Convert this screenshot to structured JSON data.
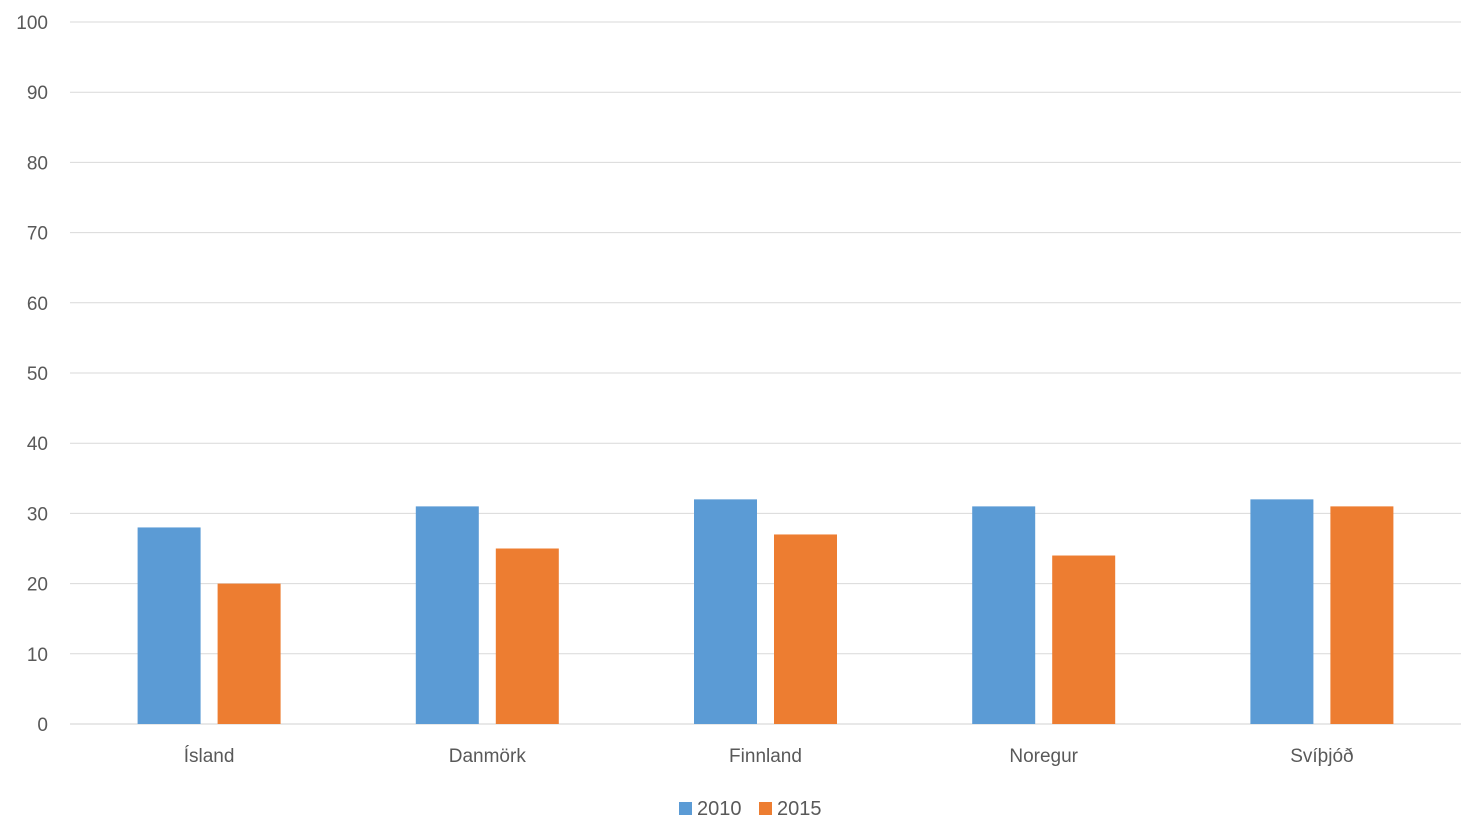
{
  "chart_data": {
    "type": "bar",
    "categories": [
      "Ísland",
      "Danmörk",
      "Finnland",
      "Noregur",
      "Svíþjóð"
    ],
    "series": [
      {
        "name": "2010",
        "color": "#5b9bd5",
        "values": [
          28,
          31,
          32,
          31,
          32
        ]
      },
      {
        "name": "2015",
        "color": "#ed7d31",
        "values": [
          20,
          25,
          27,
          24,
          31
        ]
      }
    ],
    "title": "",
    "xlabel": "",
    "ylabel": "",
    "ylim": [
      0,
      100
    ],
    "yticks": [
      "0",
      "10",
      "20",
      "30",
      "40",
      "50",
      "60",
      "70",
      "80",
      "90",
      "100"
    ],
    "grid": true,
    "legend_position": "bottom"
  }
}
